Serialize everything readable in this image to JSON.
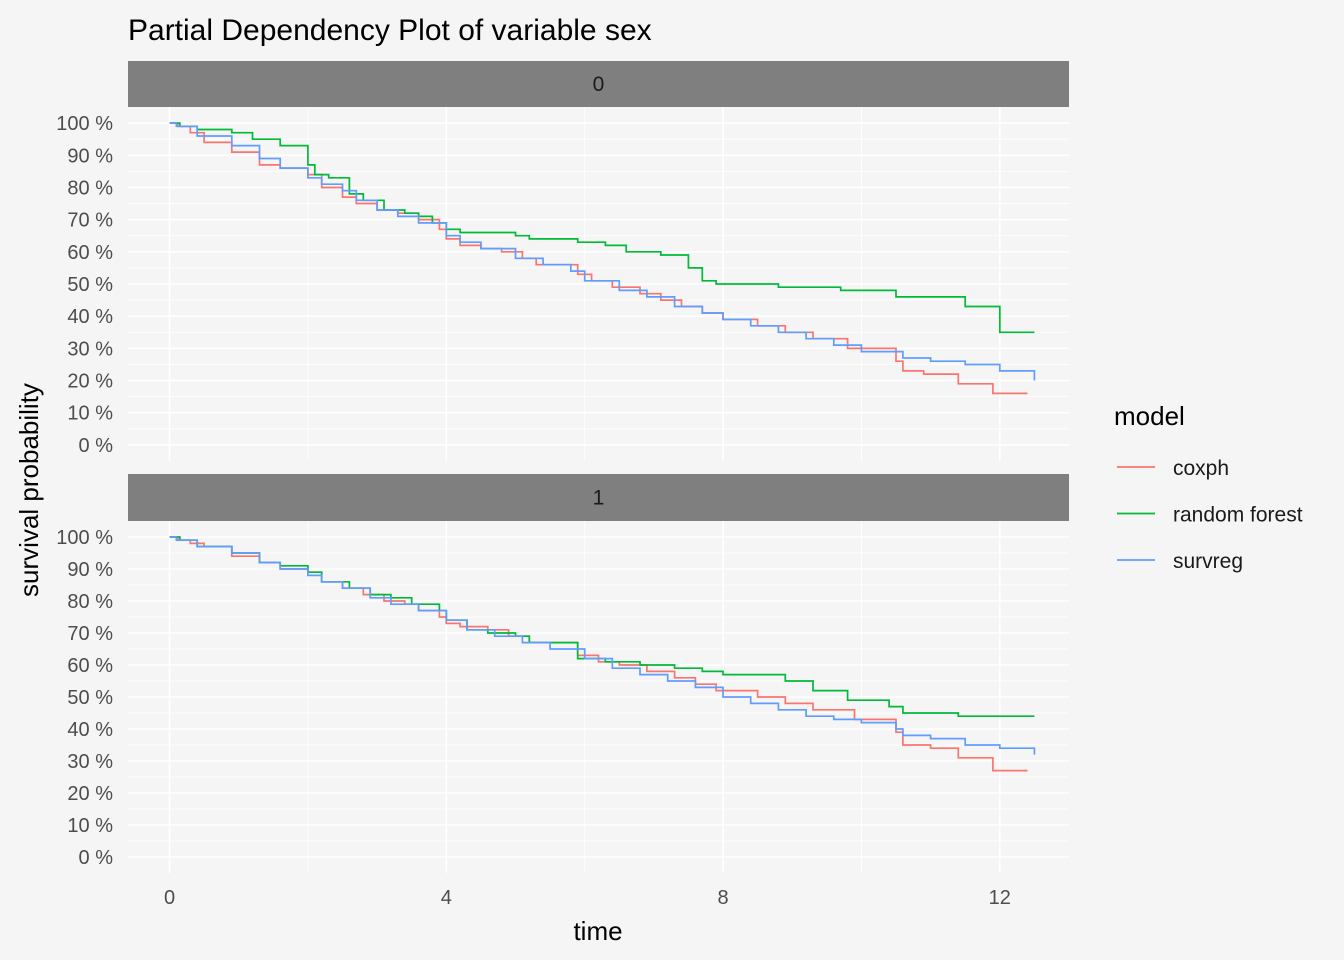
{
  "chart_data": {
    "type": "line",
    "subtype": "step",
    "title": "Partial Dependency Plot of variable sex",
    "xlabel": "time",
    "ylabel": "survival probability",
    "xlim": [
      -0.6,
      13.0
    ],
    "ylim": [
      -0.05,
      1.05
    ],
    "x_ticks": [
      0,
      4,
      8,
      12
    ],
    "x_tick_labels": [
      "0",
      "4",
      "8",
      "12"
    ],
    "y_ticks": [
      0,
      0.1,
      0.2,
      0.3,
      0.4,
      0.5,
      0.6,
      0.7,
      0.8,
      0.9,
      1.0
    ],
    "y_tick_labels": [
      "0 %",
      "10 %",
      "20 %",
      "30 %",
      "40 %",
      "50 %",
      "60 %",
      "70 %",
      "80 %",
      "90 %",
      "100 %"
    ],
    "grid": true,
    "legend": {
      "title": "model",
      "position": "right",
      "entries": [
        {
          "name": "coxph",
          "color": "#f8766d"
        },
        {
          "name": "random forest",
          "color": "#00ba38"
        },
        {
          "name": "survreg",
          "color": "#619cff"
        }
      ]
    },
    "panels": [
      {
        "label": "0",
        "series": [
          {
            "name": "coxph",
            "color": "#f8766d",
            "points": [
              [
                0,
                1.0
              ],
              [
                0.12,
                0.99
              ],
              [
                0.3,
                0.97
              ],
              [
                0.5,
                0.94
              ],
              [
                0.9,
                0.91
              ],
              [
                1.3,
                0.87
              ],
              [
                1.6,
                0.86
              ],
              [
                2.0,
                0.84
              ],
              [
                2.2,
                0.8
              ],
              [
                2.5,
                0.77
              ],
              [
                2.7,
                0.75
              ],
              [
                3.0,
                0.73
              ],
              [
                3.3,
                0.72
              ],
              [
                3.6,
                0.7
              ],
              [
                3.9,
                0.67
              ],
              [
                4.0,
                0.64
              ],
              [
                4.2,
                0.62
              ],
              [
                4.5,
                0.61
              ],
              [
                4.8,
                0.6
              ],
              [
                5.1,
                0.58
              ],
              [
                5.3,
                0.56
              ],
              [
                5.9,
                0.53
              ],
              [
                6.1,
                0.51
              ],
              [
                6.4,
                0.49
              ],
              [
                6.8,
                0.47
              ],
              [
                7.1,
                0.45
              ],
              [
                7.4,
                0.43
              ],
              [
                7.7,
                0.41
              ],
              [
                8.0,
                0.39
              ],
              [
                8.5,
                0.37
              ],
              [
                8.9,
                0.35
              ],
              [
                9.3,
                0.33
              ],
              [
                9.8,
                0.3
              ],
              [
                10.5,
                0.26
              ],
              [
                10.6,
                0.23
              ],
              [
                10.9,
                0.22
              ],
              [
                11.4,
                0.19
              ],
              [
                11.9,
                0.16
              ],
              [
                12.4,
                0.16
              ]
            ]
          },
          {
            "name": "random forest",
            "color": "#00ba38",
            "points": [
              [
                0,
                1.0
              ],
              [
                0.15,
                0.99
              ],
              [
                0.4,
                0.98
              ],
              [
                0.9,
                0.97
              ],
              [
                1.2,
                0.95
              ],
              [
                1.6,
                0.93
              ],
              [
                2.0,
                0.87
              ],
              [
                2.1,
                0.84
              ],
              [
                2.3,
                0.83
              ],
              [
                2.6,
                0.78
              ],
              [
                2.8,
                0.76
              ],
              [
                3.1,
                0.73
              ],
              [
                3.4,
                0.72
              ],
              [
                3.6,
                0.71
              ],
              [
                3.8,
                0.69
              ],
              [
                4.0,
                0.67
              ],
              [
                4.2,
                0.66
              ],
              [
                5.0,
                0.65
              ],
              [
                5.2,
                0.64
              ],
              [
                5.9,
                0.63
              ],
              [
                6.3,
                0.62
              ],
              [
                6.6,
                0.6
              ],
              [
                7.1,
                0.59
              ],
              [
                7.5,
                0.55
              ],
              [
                7.7,
                0.51
              ],
              [
                7.9,
                0.5
              ],
              [
                8.4,
                0.5
              ],
              [
                8.8,
                0.49
              ],
              [
                9.3,
                0.49
              ],
              [
                9.7,
                0.48
              ],
              [
                10.0,
                0.48
              ],
              [
                10.1,
                0.48
              ],
              [
                10.5,
                0.46
              ],
              [
                11.4,
                0.46
              ],
              [
                11.5,
                0.43
              ],
              [
                11.9,
                0.43
              ],
              [
                12.0,
                0.35
              ],
              [
                12.5,
                0.35
              ]
            ]
          },
          {
            "name": "survreg",
            "color": "#619cff",
            "points": [
              [
                0,
                1.0
              ],
              [
                0.1,
                0.99
              ],
              [
                0.4,
                0.96
              ],
              [
                0.9,
                0.93
              ],
              [
                1.3,
                0.89
              ],
              [
                1.6,
                0.86
              ],
              [
                2.0,
                0.83
              ],
              [
                2.2,
                0.81
              ],
              [
                2.5,
                0.79
              ],
              [
                2.7,
                0.76
              ],
              [
                3.0,
                0.73
              ],
              [
                3.3,
                0.71
              ],
              [
                3.6,
                0.69
              ],
              [
                4.0,
                0.65
              ],
              [
                4.2,
                0.63
              ],
              [
                4.5,
                0.61
              ],
              [
                5.0,
                0.58
              ],
              [
                5.4,
                0.56
              ],
              [
                5.8,
                0.54
              ],
              [
                6.0,
                0.51
              ],
              [
                6.5,
                0.48
              ],
              [
                6.9,
                0.46
              ],
              [
                7.3,
                0.43
              ],
              [
                7.7,
                0.41
              ],
              [
                8.0,
                0.39
              ],
              [
                8.4,
                0.37
              ],
              [
                8.8,
                0.35
              ],
              [
                9.2,
                0.33
              ],
              [
                9.6,
                0.31
              ],
              [
                10.0,
                0.29
              ],
              [
                10.5,
                0.29
              ],
              [
                10.6,
                0.27
              ],
              [
                11.0,
                0.26
              ],
              [
                11.5,
                0.25
              ],
              [
                12.0,
                0.23
              ],
              [
                12.5,
                0.2
              ]
            ]
          }
        ]
      },
      {
        "label": "1",
        "series": [
          {
            "name": "coxph",
            "color": "#f8766d",
            "points": [
              [
                0,
                1.0
              ],
              [
                0.12,
                0.99
              ],
              [
                0.3,
                0.98
              ],
              [
                0.5,
                0.97
              ],
              [
                0.9,
                0.94
              ],
              [
                1.3,
                0.92
              ],
              [
                1.6,
                0.9
              ],
              [
                2.0,
                0.89
              ],
              [
                2.2,
                0.86
              ],
              [
                2.5,
                0.84
              ],
              [
                2.8,
                0.82
              ],
              [
                3.1,
                0.8
              ],
              [
                3.4,
                0.79
              ],
              [
                3.6,
                0.77
              ],
              [
                3.9,
                0.75
              ],
              [
                4.0,
                0.73
              ],
              [
                4.2,
                0.72
              ],
              [
                4.6,
                0.71
              ],
              [
                4.9,
                0.69
              ],
              [
                5.2,
                0.67
              ],
              [
                5.9,
                0.63
              ],
              [
                6.2,
                0.61
              ],
              [
                6.5,
                0.6
              ],
              [
                6.9,
                0.58
              ],
              [
                7.3,
                0.56
              ],
              [
                7.6,
                0.54
              ],
              [
                7.9,
                0.52
              ],
              [
                8.5,
                0.5
              ],
              [
                8.9,
                0.48
              ],
              [
                9.3,
                0.46
              ],
              [
                9.9,
                0.43
              ],
              [
                10.5,
                0.39
              ],
              [
                10.6,
                0.35
              ],
              [
                11.0,
                0.34
              ],
              [
                11.4,
                0.31
              ],
              [
                11.9,
                0.27
              ],
              [
                12.4,
                0.27
              ]
            ]
          },
          {
            "name": "random forest",
            "color": "#00ba38",
            "points": [
              [
                0,
                1.0
              ],
              [
                0.15,
                0.99
              ],
              [
                0.4,
                0.97
              ],
              [
                0.9,
                0.95
              ],
              [
                1.3,
                0.92
              ],
              [
                1.6,
                0.91
              ],
              [
                2.0,
                0.89
              ],
              [
                2.2,
                0.86
              ],
              [
                2.6,
                0.84
              ],
              [
                2.9,
                0.82
              ],
              [
                3.2,
                0.81
              ],
              [
                3.5,
                0.79
              ],
              [
                3.9,
                0.77
              ],
              [
                4.0,
                0.74
              ],
              [
                4.3,
                0.71
              ],
              [
                4.6,
                0.7
              ],
              [
                5.0,
                0.69
              ],
              [
                5.2,
                0.67
              ],
              [
                5.9,
                0.62
              ],
              [
                6.3,
                0.61
              ],
              [
                6.8,
                0.6
              ],
              [
                7.3,
                0.59
              ],
              [
                7.7,
                0.58
              ],
              [
                8.0,
                0.57
              ],
              [
                8.9,
                0.55
              ],
              [
                9.3,
                0.52
              ],
              [
                9.8,
                0.49
              ],
              [
                10.4,
                0.47
              ],
              [
                10.6,
                0.45
              ],
              [
                11.4,
                0.44
              ],
              [
                12.5,
                0.44
              ]
            ]
          },
          {
            "name": "survreg",
            "color": "#619cff",
            "points": [
              [
                0,
                1.0
              ],
              [
                0.1,
                0.99
              ],
              [
                0.4,
                0.97
              ],
              [
                0.9,
                0.95
              ],
              [
                1.3,
                0.92
              ],
              [
                1.6,
                0.9
              ],
              [
                2.0,
                0.88
              ],
              [
                2.2,
                0.86
              ],
              [
                2.5,
                0.84
              ],
              [
                2.9,
                0.81
              ],
              [
                3.2,
                0.79
              ],
              [
                3.6,
                0.77
              ],
              [
                4.0,
                0.74
              ],
              [
                4.3,
                0.71
              ],
              [
                4.7,
                0.69
              ],
              [
                5.1,
                0.67
              ],
              [
                5.5,
                0.65
              ],
              [
                6.0,
                0.62
              ],
              [
                6.4,
                0.59
              ],
              [
                6.8,
                0.57
              ],
              [
                7.2,
                0.55
              ],
              [
                7.6,
                0.53
              ],
              [
                8.0,
                0.5
              ],
              [
                8.4,
                0.48
              ],
              [
                8.8,
                0.46
              ],
              [
                9.2,
                0.44
              ],
              [
                9.6,
                0.43
              ],
              [
                10.0,
                0.42
              ],
              [
                10.5,
                0.4
              ],
              [
                10.6,
                0.38
              ],
              [
                11.0,
                0.37
              ],
              [
                11.5,
                0.35
              ],
              [
                12.0,
                0.34
              ],
              [
                12.5,
                0.32
              ]
            ]
          }
        ]
      }
    ]
  }
}
